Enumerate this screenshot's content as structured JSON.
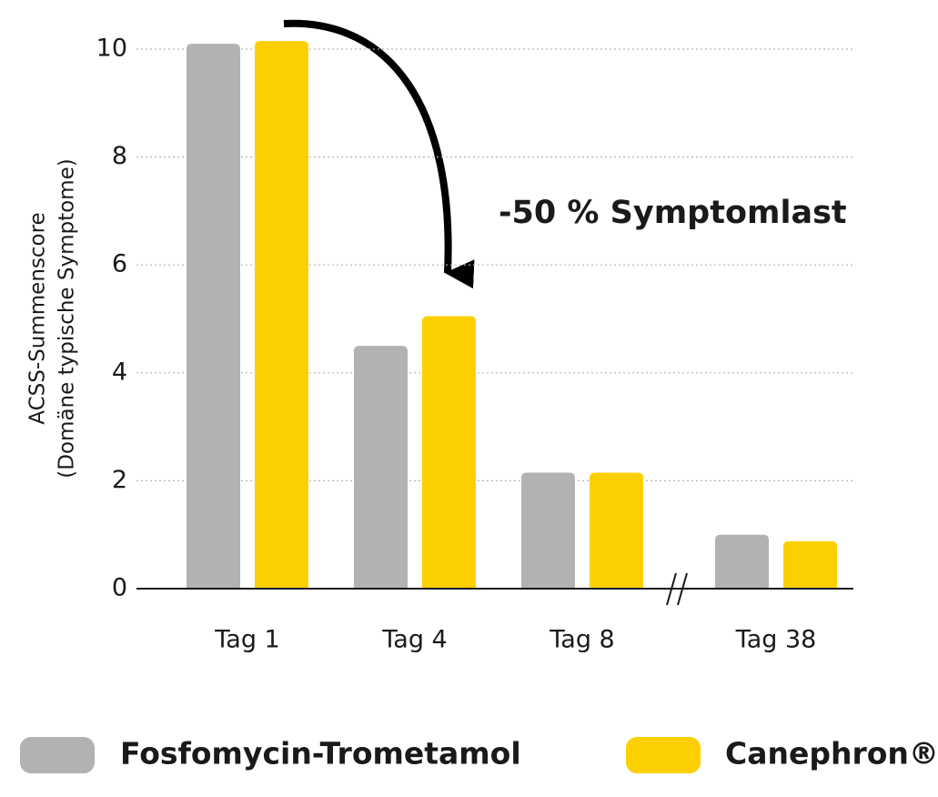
{
  "chart_data": {
    "type": "bar",
    "y_label": [
      "ACSS-Summenscore",
      "(Domäne typische Symptome)"
    ],
    "annotation": "-50 % Symptomlast",
    "categories": [
      "Tag 1",
      "Tag 4",
      "Tag 8",
      "Tag 38"
    ],
    "series": [
      {
        "name": "Fosfomycin-Trometamol",
        "color": "#b2b2b2",
        "values": [
          10.1,
          4.5,
          2.15,
          1.0
        ]
      },
      {
        "name": "Canephron®",
        "color": "#fcd000",
        "values": [
          10.15,
          5.05,
          2.15,
          0.88
        ]
      }
    ],
    "ylim": [
      0,
      10
    ],
    "yticks": [
      0,
      2,
      4,
      6,
      8,
      10
    ],
    "grid": true,
    "legend": "bottom"
  }
}
